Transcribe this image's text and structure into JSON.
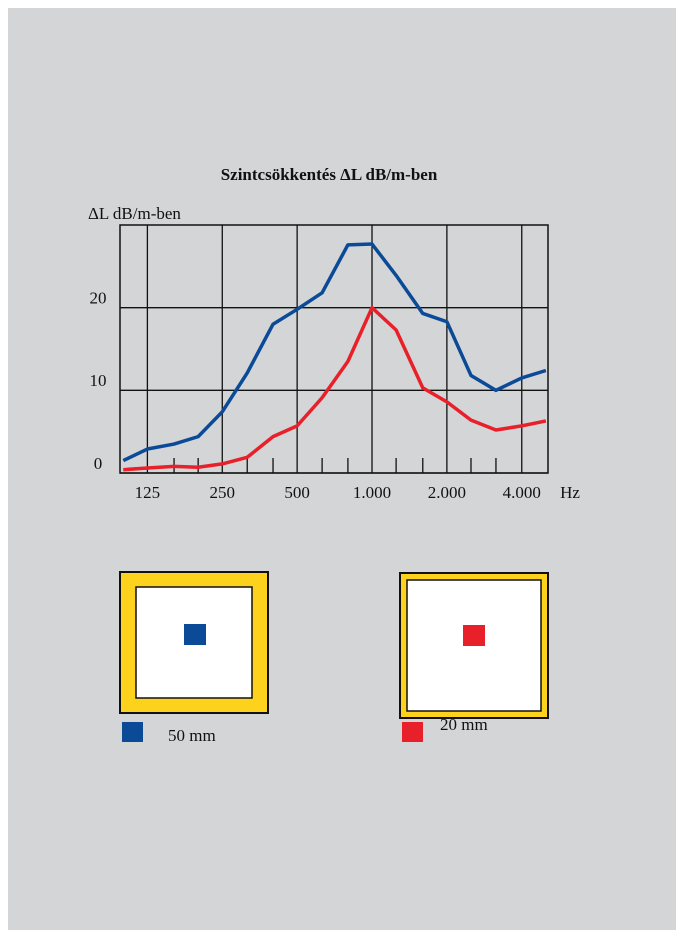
{
  "chart_data": {
    "type": "line",
    "title": "Szintcsökkentés ΔL dB/m-ben",
    "ylabel": "ΔL dB/m-ben",
    "xlabel": "Hz",
    "log_x": true,
    "grid": true,
    "x": [
      100,
      125,
      160,
      200,
      250,
      315,
      400,
      500,
      630,
      800,
      1000,
      1250,
      1600,
      2000,
      2500,
      3150,
      4000,
      5000
    ],
    "series": [
      {
        "name": "50 mm",
        "color": "#0b4a97",
        "values": [
          1.5,
          2.9,
          3.5,
          4.4,
          7.4,
          12.1,
          18.0,
          19.8,
          21.8,
          27.6,
          27.7,
          23.9,
          19.3,
          18.3,
          11.8,
          10.0,
          11.5,
          12.4
        ]
      },
      {
        "name": "20 mm",
        "color": "#e8202a",
        "values": [
          0.4,
          0.6,
          0.8,
          0.7,
          1.1,
          1.9,
          4.4,
          5.7,
          9.1,
          13.5,
          20.0,
          17.3,
          10.3,
          8.6,
          6.4,
          5.2,
          5.7,
          6.3
        ]
      }
    ],
    "xlim": [
      97,
      5100
    ],
    "xticks": [
      {
        "value": 125,
        "label": "125"
      },
      {
        "value": 250,
        "label": "250"
      },
      {
        "value": 500,
        "label": "500"
      },
      {
        "value": 1000,
        "label": "1.000"
      },
      {
        "value": 2000,
        "label": "2.000"
      },
      {
        "value": 4000,
        "label": "4.000"
      }
    ],
    "xminorticks": [
      160,
      200,
      315,
      400,
      630,
      800,
      1250,
      1600,
      2500,
      3150
    ],
    "ylim": [
      0,
      30
    ],
    "yticks": [
      0,
      10,
      20
    ]
  }
}
